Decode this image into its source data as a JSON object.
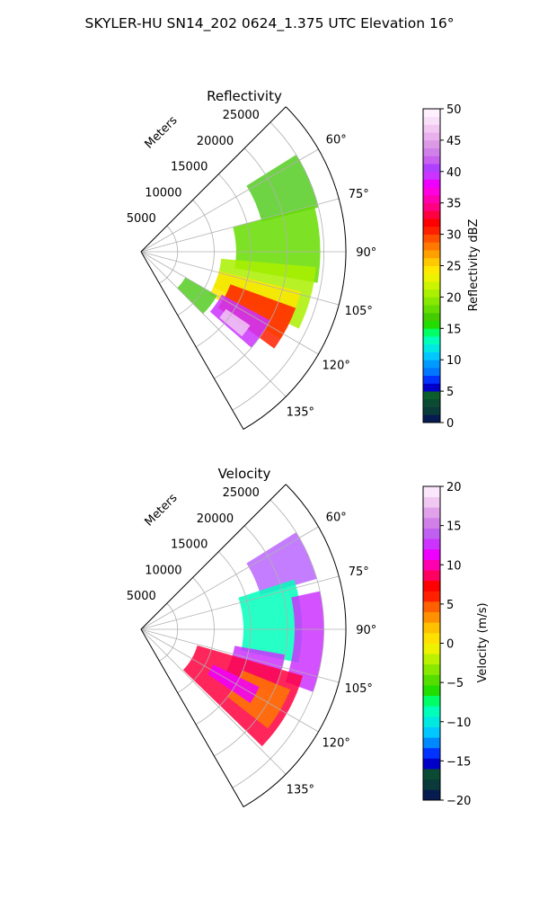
{
  "figure": {
    "suptitle": "SKYLER-HU  SN14_202  0624_1.375 UTC Elevation 16°"
  },
  "chart_data": [
    {
      "type": "heatmap",
      "projection": "polar-sector",
      "title": "Reflectivity",
      "radial_label": "Meters",
      "radial_ticks": [
        5000,
        10000,
        15000,
        20000,
        25000
      ],
      "rlim": [
        0,
        28000
      ],
      "azimuth_range_deg": [
        45,
        150
      ],
      "azimuth_ticks": [
        "60°",
        "75°",
        "90°",
        "105°",
        "120°",
        "135°"
      ],
      "grid": true,
      "colorbar": {
        "label": "Reflectivity dBZ",
        "range": [
          0,
          50
        ],
        "ticks": [
          "0",
          "5",
          "10",
          "15",
          "20",
          "25",
          "30",
          "35",
          "40",
          "45",
          "50"
        ],
        "colors": [
          "#061b4f",
          "#0a3a3a",
          "#0b4a33",
          "#0c5e2c",
          "#0000c8",
          "#0033ff",
          "#0077ff",
          "#0099ff",
          "#00c8ff",
          "#00e8e0",
          "#00ffbb",
          "#00ff66",
          "#22dd00",
          "#44cc00",
          "#66dd00",
          "#88e800",
          "#aaf000",
          "#ccf400",
          "#eef200",
          "#ffe800",
          "#ffc800",
          "#ffa000",
          "#ff7800",
          "#ff5000",
          "#ff2000",
          "#ff0000",
          "#ff0040",
          "#ff0080",
          "#ff00b0",
          "#ff00e0",
          "#ee00ff",
          "#cc33ff",
          "#b040ff",
          "#c860f0",
          "#d080e8",
          "#dc99e6",
          "#e8b0ec",
          "#f0c8f2",
          "#f8e0f8",
          "#fff0ff"
        ]
      },
      "echo_regions": [
        {
          "level": 20,
          "az_range": [
            58,
            76
          ],
          "r_range": [
            17000,
            25000
          ],
          "fill": "#55cc22"
        },
        {
          "level": 22,
          "az_range": [
            75,
            100
          ],
          "r_range": [
            13000,
            24500
          ],
          "fill": "#66dd00"
        },
        {
          "level": 23,
          "az_range": [
            95,
            116
          ],
          "r_range": [
            11000,
            24000
          ],
          "fill": "#aaf000"
        },
        {
          "level": 26,
          "az_range": [
            104,
            122
          ],
          "r_range": [
            11000,
            22500
          ],
          "fill": "#ffe800"
        },
        {
          "level": 33,
          "az_range": [
            110,
            126
          ],
          "r_range": [
            13000,
            22500
          ],
          "fill": "#ff2000"
        },
        {
          "level": 42,
          "az_range": [
            118,
            131
          ],
          "r_range": [
            12500,
            20000
          ],
          "fill": "#cc33ff"
        },
        {
          "level": 46,
          "az_range": [
            124,
            130
          ],
          "r_range": [
            14000,
            18000
          ],
          "fill": "#f0c8f2"
        },
        {
          "level": 21,
          "az_range": [
            120,
            135
          ],
          "r_range": [
            7000,
            12000
          ],
          "fill": "#55cc22"
        }
      ]
    },
    {
      "type": "heatmap",
      "projection": "polar-sector",
      "title": "Velocity",
      "radial_label": "Meters",
      "radial_ticks": [
        5000,
        10000,
        15000,
        20000,
        25000
      ],
      "rlim": [
        0,
        28000
      ],
      "azimuth_range_deg": [
        45,
        150
      ],
      "azimuth_ticks": [
        "60°",
        "75°",
        "90°",
        "105°",
        "120°",
        "135°"
      ],
      "grid": true,
      "colorbar": {
        "label": "Velocity (m/s)",
        "range": [
          -20,
          20
        ],
        "ticks": [
          "−20",
          "−15",
          "−10",
          "−5",
          "0",
          "5",
          "10",
          "15",
          "20"
        ],
        "colors": [
          "#061b4f",
          "#0a3a3a",
          "#0b4a33",
          "#0000c8",
          "#0033ff",
          "#0088ff",
          "#00c8ff",
          "#00e8e0",
          "#00ffbb",
          "#00ff66",
          "#22dd00",
          "#55dd00",
          "#88e800",
          "#bbf000",
          "#eef200",
          "#ffe000",
          "#ffc000",
          "#ff9000",
          "#ff6000",
          "#ff2000",
          "#ff0000",
          "#ff0060",
          "#ff00b0",
          "#ee00ff",
          "#cc33ff",
          "#c060f0",
          "#d080e8",
          "#e0a0ea",
          "#f0c8f2",
          "#fbe6fb"
        ]
      },
      "echo_regions": [
        {
          "level": 13,
          "az_range": [
            58,
            74
          ],
          "r_range": [
            17000,
            25000
          ],
          "fill": "#bb66ff"
        },
        {
          "level": -12,
          "az_range": [
            72,
            102
          ],
          "r_range": [
            14000,
            22000
          ],
          "fill": "#00ffbb"
        },
        {
          "level": 13,
          "az_range": [
            78,
            110
          ],
          "r_range": [
            21000,
            25000
          ],
          "fill": "#cc33ff"
        },
        {
          "level": 13,
          "az_range": [
            100,
            116
          ],
          "r_range": [
            13000,
            20000
          ],
          "fill": "#cc33ff"
        },
        {
          "level": 9,
          "az_range": [
            106,
            134
          ],
          "r_range": [
            8000,
            23000
          ],
          "fill": "#ff0040"
        },
        {
          "level": 3,
          "az_range": [
            112,
            128
          ],
          "r_range": [
            15000,
            22000
          ],
          "fill": "#ff7800"
        },
        {
          "level": 14,
          "az_range": [
            116,
            124
          ],
          "r_range": [
            11000,
            18000
          ],
          "fill": "#ee00ff"
        }
      ]
    }
  ]
}
